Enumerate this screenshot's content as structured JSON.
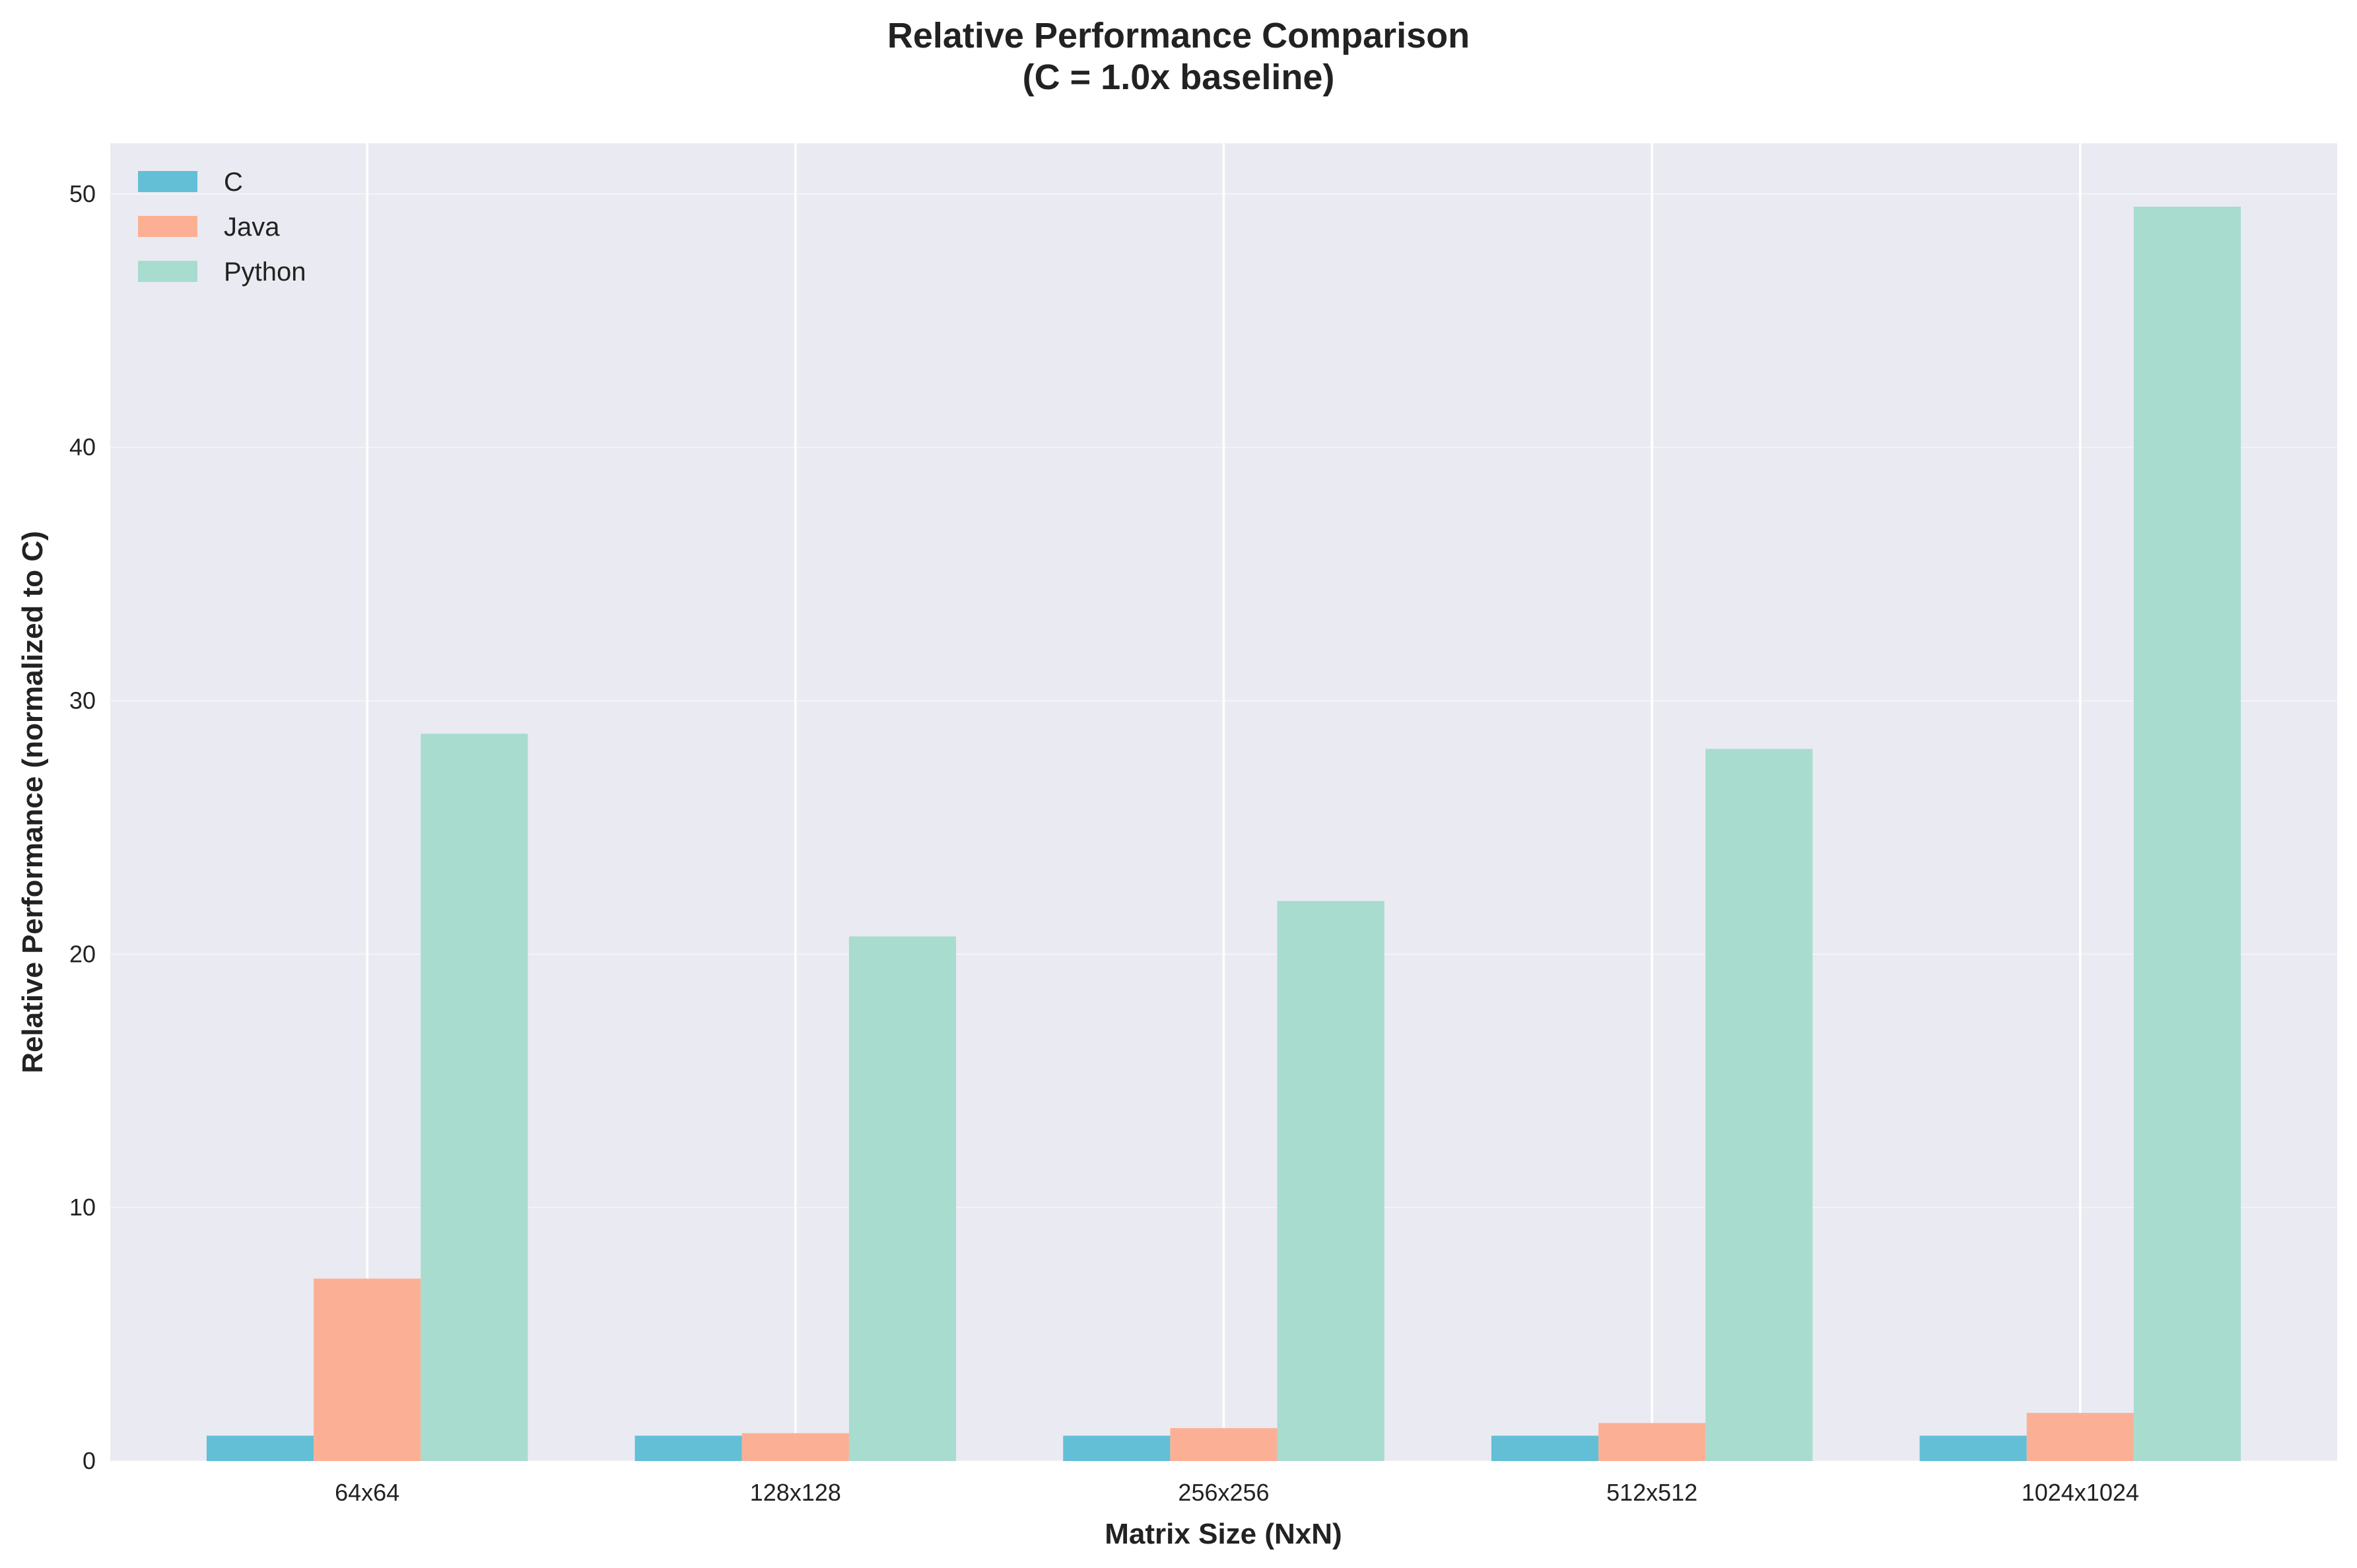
{
  "chart_data": {
    "type": "bar",
    "title": "Relative Performance Comparison",
    "subtitle": "(C = 1.0x baseline)",
    "xlabel": "Matrix Size (NxN)",
    "ylabel": "Relative Performance (normalized to C)",
    "categories": [
      "64x64",
      "128x128",
      "256x256",
      "512x512",
      "1024x1024"
    ],
    "series": [
      {
        "name": "C",
        "color": "#62bfd6",
        "values": [
          1.0,
          1.0,
          1.0,
          1.0,
          1.0
        ]
      },
      {
        "name": "Java",
        "color": "#fbb095",
        "values": [
          7.2,
          1.1,
          1.3,
          1.5,
          1.9
        ]
      },
      {
        "name": "Python",
        "color": "#a7dccf",
        "values": [
          28.7,
          20.7,
          22.1,
          28.1,
          49.5
        ]
      }
    ],
    "ylim": [
      0,
      52
    ],
    "yticks": [
      0,
      10,
      20,
      30,
      40,
      50
    ],
    "grid": true,
    "legend_position": "top-left",
    "background_color": "#eaeaf2"
  }
}
